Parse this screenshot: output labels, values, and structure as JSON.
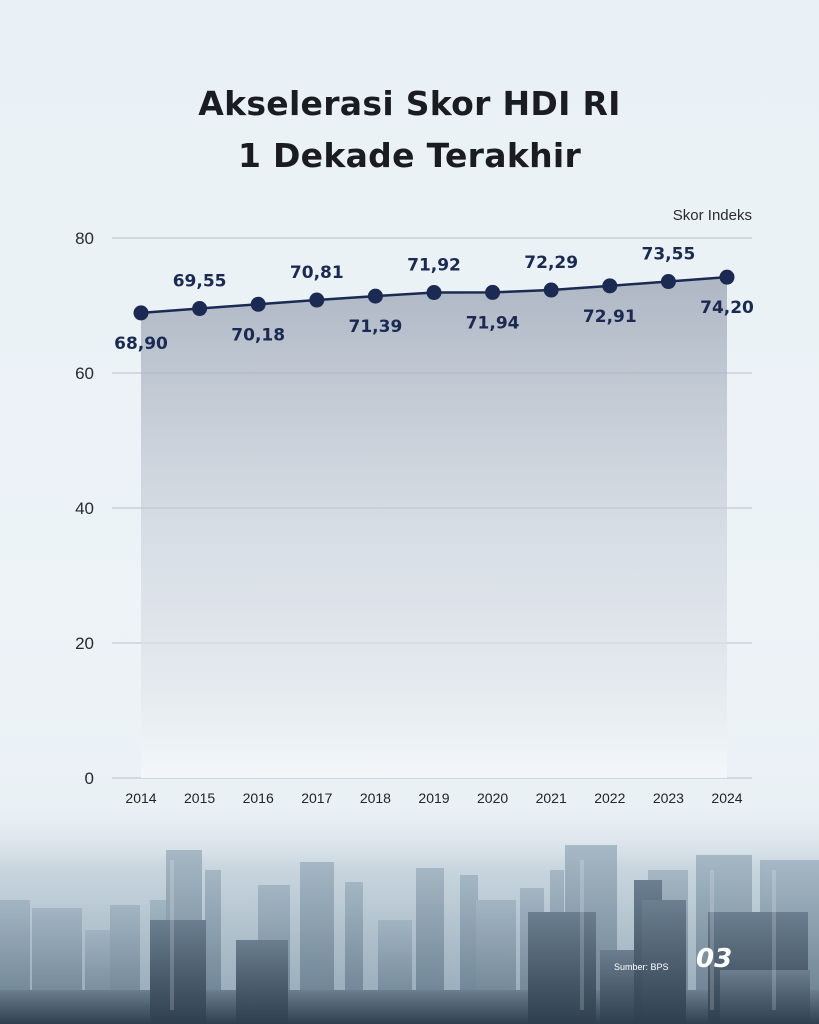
{
  "title_lines": [
    "Akselerasi Skor HDI RI",
    "1 Dekade Terakhir"
  ],
  "source": "Sumber: BPS",
  "page_number": "03",
  "colors": {
    "line": "#1a2a52",
    "label": "#1a2a52",
    "title": "#1b1b22",
    "grid": "#b8c0c8"
  },
  "chart_data": {
    "type": "line",
    "title": "Akselerasi Skor HDI RI 1 Dekade Terakhir",
    "ylabel": "Skor Indeks",
    "xlabel": "",
    "x": [
      "2014",
      "2015",
      "2016",
      "2017",
      "2018",
      "2019",
      "2020",
      "2021",
      "2022",
      "2023",
      "2024"
    ],
    "series": [
      {
        "values": [
          68.9,
          69.55,
          70.18,
          70.81,
          71.39,
          71.92,
          71.94,
          72.29,
          72.91,
          73.55,
          74.2
        ],
        "labels": [
          "68,90",
          "69,55",
          "70,18",
          "70,81",
          "71,39",
          "71,92",
          "71,94",
          "72,29",
          "72,91",
          "73,55",
          "74,20"
        ]
      }
    ],
    "ylim": [
      0,
      80
    ],
    "yticks": [
      0,
      20,
      40,
      60,
      80
    ],
    "grid": true,
    "area_fill": true,
    "legend": "none"
  }
}
